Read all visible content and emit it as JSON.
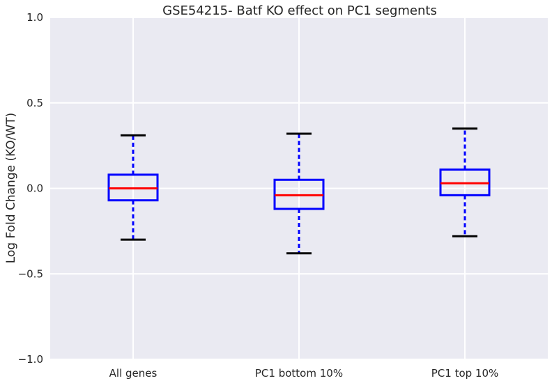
{
  "chart_data": {
    "type": "box",
    "title": "GSE54215- Batf KO effect on PC1 segments",
    "xlabel": "",
    "ylabel": "Log Fold Change (KO/WT)",
    "ylim": [
      -1.0,
      1.0
    ],
    "yticks": [
      -1.0,
      -0.5,
      0.0,
      0.5,
      1.0
    ],
    "ytick_labels": [
      "−1.0",
      "−0.5",
      "0.0",
      "0.5",
      "1.0"
    ],
    "grid": true,
    "categories": [
      "All genes",
      "PC1 bottom 10%",
      "PC1 top 10%"
    ],
    "boxes": [
      {
        "whisker_low": -0.3,
        "q1": -0.07,
        "median": 0.0,
        "q3": 0.08,
        "whisker_high": 0.31
      },
      {
        "whisker_low": -0.38,
        "q1": -0.12,
        "median": -0.04,
        "q3": 0.05,
        "whisker_high": 0.32
      },
      {
        "whisker_low": -0.28,
        "q1": -0.04,
        "median": 0.03,
        "q3": 0.11,
        "whisker_high": 0.35
      }
    ],
    "colors": {
      "background": "#EAEAF2",
      "grid": "#FFFFFF",
      "box": "#0000FF",
      "median": "#FF0000",
      "cap": "#000000"
    }
  }
}
